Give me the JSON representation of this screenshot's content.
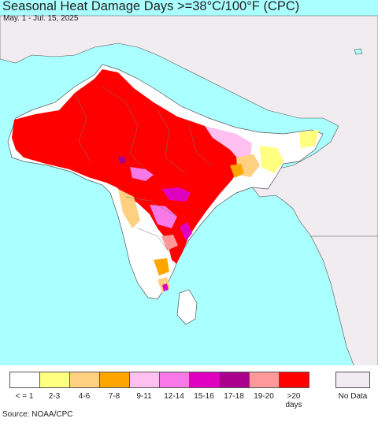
{
  "title": "Seasonal Heat Damage Days >=38°C/100°F (CPC)",
  "subtitle": "May. 1 - Jul. 15, 2025",
  "source": "Source: NOAA/CPC",
  "colors": {
    "ocean": "#aaffff",
    "no_data_land": "#f0ecf0",
    "white_land": "#ffffff",
    "border": "#555555"
  },
  "legend": {
    "items": [
      {
        "label": "< = 1",
        "color": "#ffffff"
      },
      {
        "label": "2-3",
        "color": "#ffff80"
      },
      {
        "label": "4-6",
        "color": "#ffd080"
      },
      {
        "label": "7-8",
        "color": "#ffa500"
      },
      {
        "label": "9-11",
        "color": "#ffc0f0"
      },
      {
        "label": "12-14",
        "color": "#f878e8"
      },
      {
        "label": "15-16",
        "color": "#e000c0"
      },
      {
        "label": "17-18",
        "color": "#a8008c"
      },
      {
        "label": "19-20",
        "color": "#ff9898"
      },
      {
        "label": ">20 days",
        "color": "#ff0000"
      }
    ],
    "no_data": {
      "label": "No Data",
      "color": "#f0ecf0"
    }
  }
}
